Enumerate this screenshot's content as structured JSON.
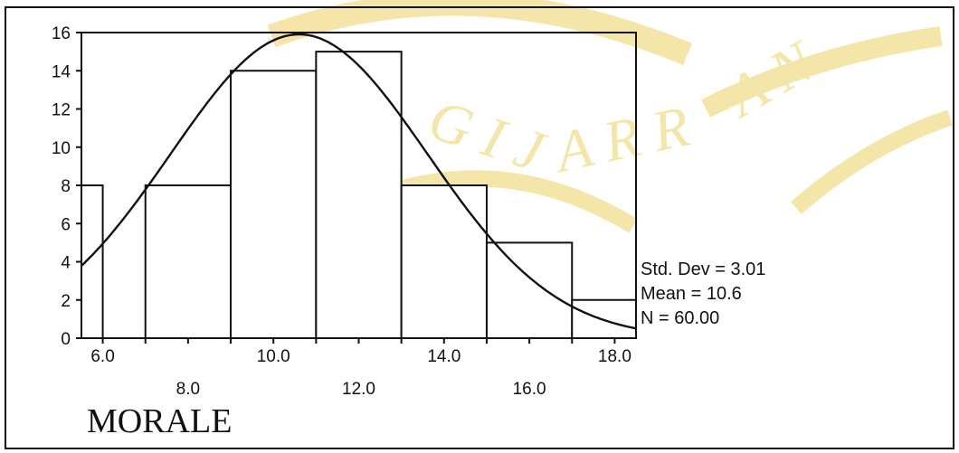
{
  "chart_data": {
    "type": "bar",
    "subtype": "histogram",
    "xlabel": "MORALE",
    "ylabel": "",
    "title": "",
    "xlim": [
      5.5,
      18.5
    ],
    "ylim": [
      0,
      16
    ],
    "bins": [
      {
        "center": 5.0,
        "value": 8
      },
      {
        "center": 8.0,
        "value": 8
      },
      {
        "center": 10.0,
        "value": 14
      },
      {
        "center": 12.0,
        "value": 15
      },
      {
        "center": 14.0,
        "value": 8
      },
      {
        "center": 16.0,
        "value": 5
      },
      {
        "center": 18.0,
        "value": 2
      }
    ],
    "y_ticks": [
      "0",
      "2",
      "4",
      "6",
      "8",
      "10",
      "12",
      "14",
      "16"
    ],
    "x_ticks_upper": [
      "6.0",
      "10.0",
      "14.0",
      "18.0"
    ],
    "x_ticks_lower": [
      "8.0",
      "12.0",
      "16.0"
    ],
    "normal_curve": {
      "mean": 10.6,
      "std_dev": 3.01,
      "n": 60
    },
    "stats": {
      "std_dev": "Std. Dev = 3.01",
      "mean": "Mean = 10.6",
      "n": "N = 60.00"
    },
    "grid": false,
    "colors": {
      "bar_fill": "#ffffff",
      "stroke": "#111111",
      "watermark": "#f3e19a"
    }
  }
}
